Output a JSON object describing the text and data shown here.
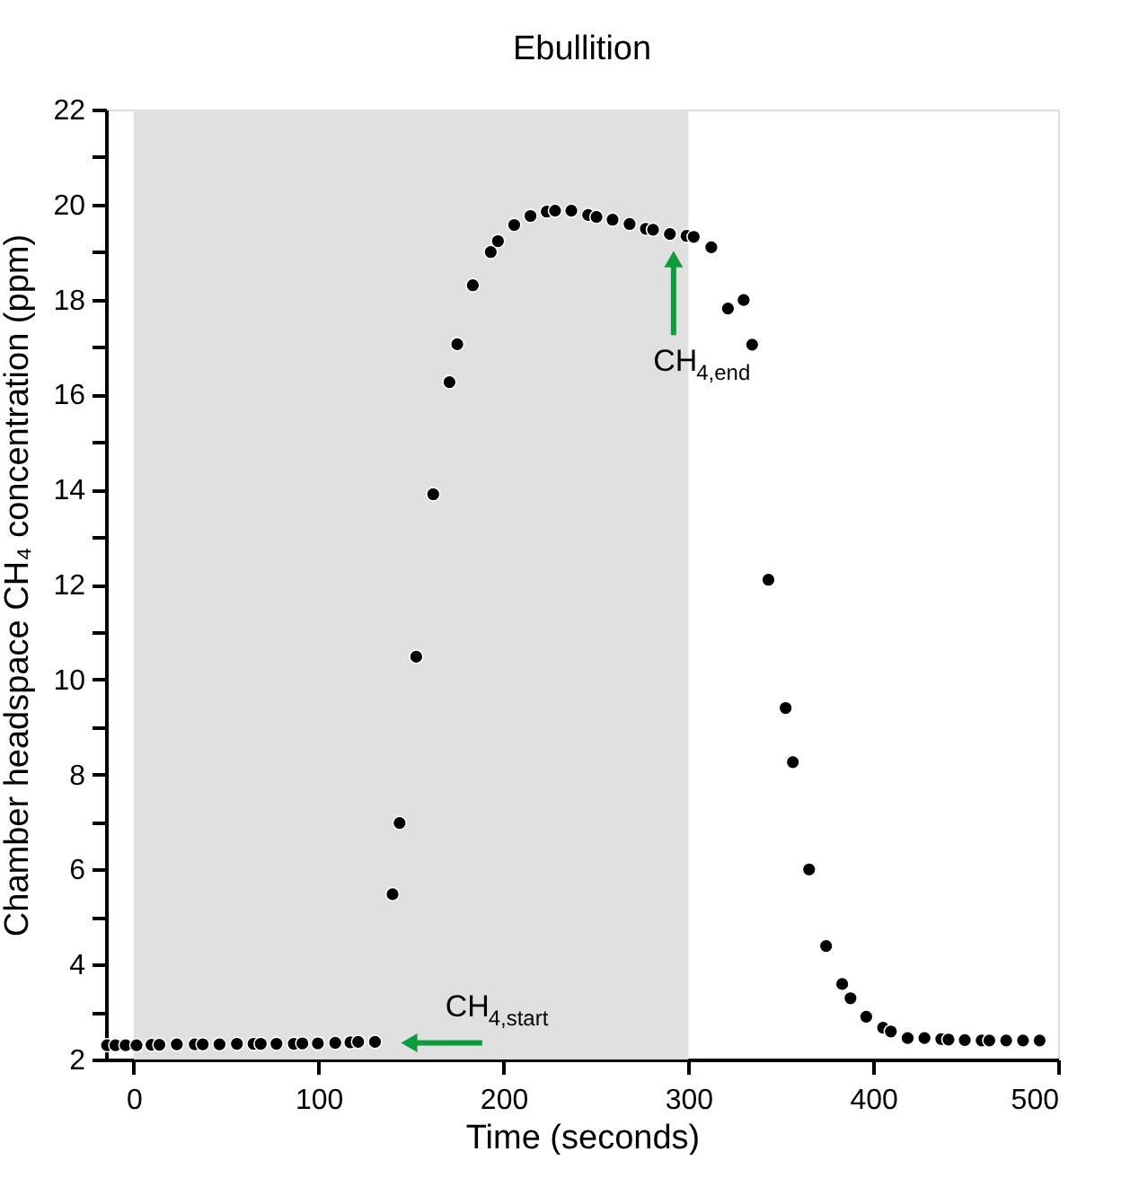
{
  "chart_data": {
    "type": "scatter",
    "title": "Ebullition",
    "xlabel": "Time (seconds)",
    "ylabel": "Chamber headspace CH₄ concentration (ppm)",
    "xlim": [
      -15,
      500
    ],
    "xticks": [
      0,
      100,
      200,
      300,
      400,
      500
    ],
    "ylim": [
      2,
      22
    ],
    "yticks": [
      2,
      {
        "value": 3,
        "label": null
      },
      4,
      {
        "value": 5,
        "label": null
      },
      6,
      {
        "value": 7,
        "label": null
      },
      8,
      {
        "value": 9,
        "label": null
      },
      10,
      {
        "value": 11,
        "label": null
      },
      12,
      {
        "value": 13,
        "label": null
      },
      14,
      {
        "value": 15,
        "label": null
      },
      16,
      {
        "value": 17,
        "label": null
      },
      18,
      {
        "value": 19,
        "label": null
      },
      20,
      {
        "value": 21,
        "label": null
      },
      22
    ],
    "marker": "circle",
    "grid": false,
    "legend": false,
    "bands": [
      {
        "axis": "x",
        "from": 0,
        "to": 300,
        "color": "#e0e0e0"
      }
    ],
    "annotations": [
      {
        "text": "CH$_{4,start}$",
        "x": 130.5,
        "y": 2.37
      },
      "CH$_{4,end}$"
    ],
    "series": [
      {
        "color": "#000000",
        "x": [
          -14.4,
          -9.9,
          -4.4,
          1.5,
          9.6,
          13.9,
          23.3,
          33,
          37.3,
          46.4,
          55.8,
          64.8,
          68.7,
          77.2,
          86.6,
          91.2,
          99.6,
          109,
          117.2,
          121.4,
          130.5,
          140,
          143.8,
          152.8,
          162,
          170.8,
          175,
          183.4,
          193.1,
          197,
          205.8,
          214.6,
          223.4,
          227.9,
          236.7,
          245.8,
          250.3,
          259,
          268.2,
          277,
          280.9,
          290,
          299,
          302.9,
          312.4,
          321.4,
          329.9,
          334.5,
          343.3,
          352.6,
          356.5,
          365.3,
          374.5,
          383.2,
          387.7,
          396.2,
          405.3,
          409.5,
          418.6,
          427.7,
          436.8,
          440.7,
          449.5,
          458.6,
          462.8,
          471.9,
          481,
          490
        ],
        "values": [
          2.3,
          2.3,
          2.3,
          2.3,
          2.31,
          2.31,
          2.32,
          2.32,
          2.32,
          2.32,
          2.33,
          2.33,
          2.33,
          2.33,
          2.33,
          2.34,
          2.34,
          2.35,
          2.36,
          2.37,
          2.37,
          5.48,
          6.98,
          10.48,
          13.9,
          16.26,
          17.06,
          18.3,
          19.0,
          19.23,
          19.57,
          19.76,
          19.85,
          19.87,
          19.87,
          19.78,
          19.74,
          19.68,
          19.59,
          19.49,
          19.47,
          19.38,
          19.34,
          19.32,
          19.1,
          17.81,
          17.99,
          17.05,
          12.1,
          9.4,
          8.26,
          6.0,
          4.39,
          3.59,
          3.29,
          2.9,
          2.67,
          2.59,
          2.45,
          2.45,
          2.43,
          2.42,
          2.41,
          2.4,
          2.4,
          2.4,
          2.4,
          2.4
        ]
      }
    ]
  }
}
